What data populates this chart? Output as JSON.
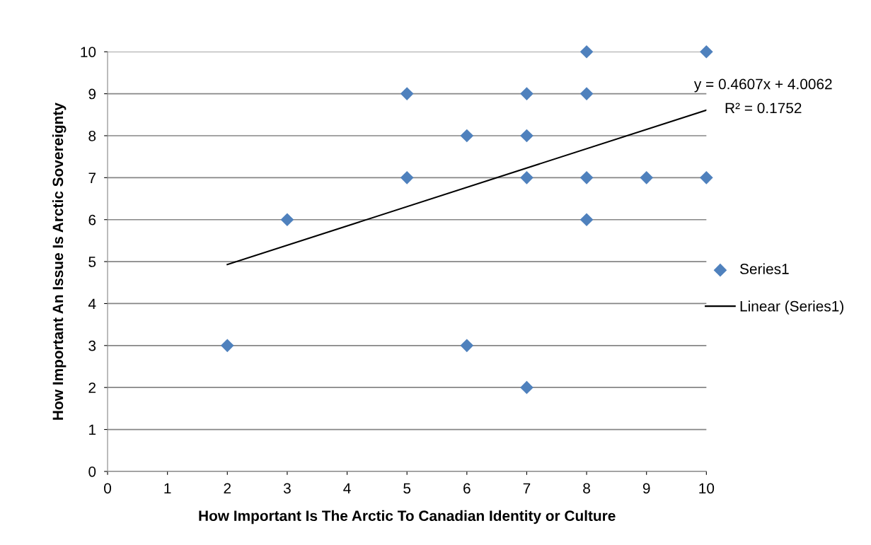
{
  "chart_data": {
    "type": "scatter",
    "xlabel": "How Important Is The Arctic To Canadian Identity or Culture",
    "ylabel": "How Important An Issue Is Arctic Sovereignty",
    "series": [
      {
        "name": "Series1",
        "color": "#4f81bd",
        "marker": "diamond",
        "x": [
          2,
          3,
          5,
          5,
          6,
          6,
          7,
          7,
          7,
          7,
          8,
          8,
          8,
          8,
          9,
          10,
          10
        ],
        "values": [
          3,
          6,
          9,
          7,
          8,
          3,
          9,
          8,
          7,
          2,
          10,
          9,
          7,
          6,
          7,
          10,
          7
        ]
      },
      {
        "name": "Linear (Series1)",
        "type": "line",
        "color": "#000000",
        "marker": "none",
        "line_style": "solid",
        "x": [
          2,
          10
        ],
        "values": [
          4.93,
          8.61
        ]
      }
    ],
    "annotations": [
      "y = 0.4607x + 4.0062",
      "R² = 0.1752"
    ],
    "xlim": [
      0,
      10
    ],
    "xticks": [
      0,
      1,
      2,
      3,
      4,
      5,
      6,
      7,
      8,
      9,
      10
    ],
    "ylim": [
      0,
      10
    ],
    "yticks": [
      0,
      1,
      2,
      3,
      4,
      5,
      6,
      7,
      8,
      9,
      10
    ],
    "grid": "y",
    "legend": "right"
  }
}
